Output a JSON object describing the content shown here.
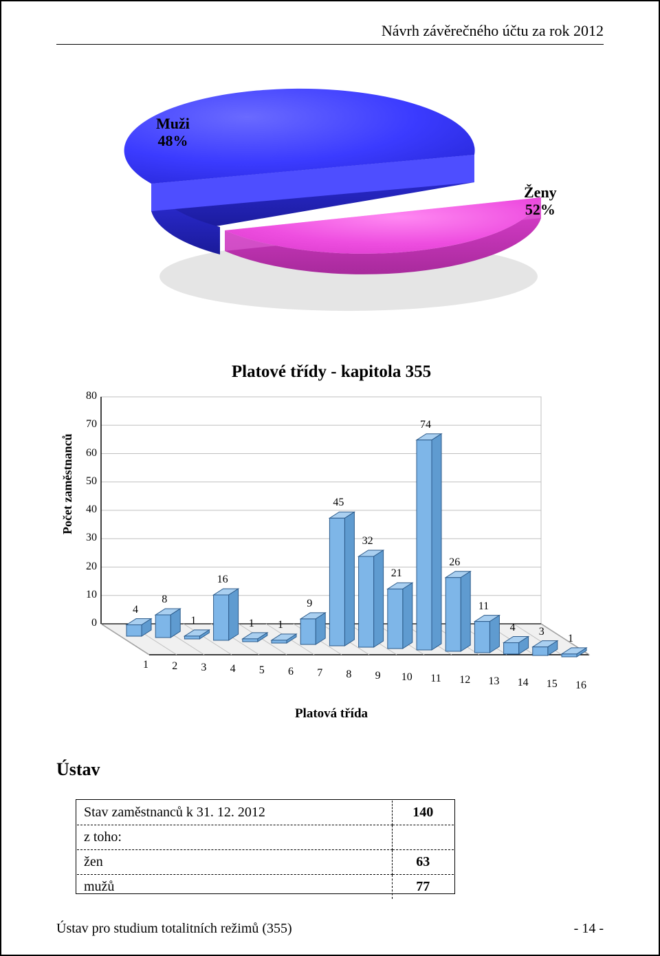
{
  "header": {
    "title": "Návrh závěrečného účtu za rok 2012"
  },
  "pie": {
    "slices": [
      {
        "key": "men",
        "label": "Muži",
        "pct": "48%",
        "color_top": "#3b3bff",
        "color_side": "#2424cc"
      },
      {
        "key": "women",
        "label": "Ženy",
        "pct": "52%",
        "color_top": "#ee4ee0",
        "color_side": "#c533b8"
      }
    ],
    "label_fontsize": 22,
    "background_color": "#ffffff"
  },
  "bar_chart": {
    "type": "bar",
    "title": "Platové třídy - kapitola 355",
    "title_fontsize": 25,
    "ylabel": "Počet zaměstnanců",
    "xlabel": "Platová třída",
    "label_fontsize": 18,
    "categories": [
      "1",
      "2",
      "3",
      "4",
      "5",
      "6",
      "7",
      "8",
      "9",
      "10",
      "11",
      "12",
      "13",
      "14",
      "15",
      "16"
    ],
    "values": [
      4,
      8,
      1,
      16,
      1,
      1,
      9,
      45,
      32,
      21,
      74,
      26,
      11,
      4,
      3,
      1
    ],
    "ylim": [
      0,
      80
    ],
    "ytick_step": 10,
    "yticks": [
      0,
      10,
      20,
      30,
      40,
      50,
      60,
      70,
      80
    ],
    "bar_fill": "#7eb6e8",
    "bar_stroke": "#2b5a8a",
    "grid_color": "#bfbfbf",
    "axis_color": "#000000",
    "background_color": "#ffffff",
    "bar_width_ratio": 0.55,
    "perspective_offset_x": 70,
    "perspective_offset_y": 45
  },
  "section": {
    "heading": "Ústav"
  },
  "table": {
    "columns": [
      "label",
      "value"
    ],
    "rows": [
      {
        "label": "Stav zaměstnanců k 31. 12. 2012",
        "value": "140",
        "bold_value": true
      },
      {
        "label": "z toho:",
        "value": ""
      },
      {
        "label": "žen",
        "value": "63",
        "bold_value": true
      },
      {
        "label": "mužů",
        "value": "77",
        "bold_value": true
      }
    ],
    "border_style": "dashed",
    "outer_border_style": "solid",
    "font_size": 20
  },
  "footer": {
    "left": "Ústav pro studium totalitních režimů (355)",
    "right": "- 14 -"
  }
}
